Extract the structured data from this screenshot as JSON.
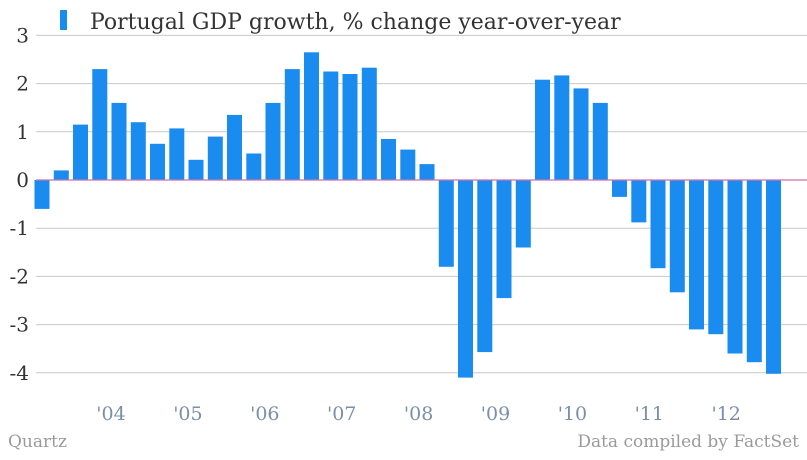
{
  "chart_data": {
    "type": "bar",
    "series": [
      {
        "name": "Portugal GDP growth, % change year-over-year",
        "values": [
          -0.6,
          0.2,
          1.15,
          2.3,
          1.6,
          1.2,
          0.75,
          1.07,
          0.42,
          0.9,
          1.35,
          0.55,
          1.6,
          2.3,
          2.65,
          2.25,
          2.2,
          2.33,
          0.85,
          0.63,
          0.33,
          -1.8,
          -4.1,
          -3.57,
          -2.45,
          -1.4,
          2.08,
          2.17,
          1.9,
          1.6,
          -0.35,
          -0.88,
          -1.83,
          -2.33,
          -3.1,
          -3.2,
          -3.6,
          -3.78,
          -4.02
        ]
      }
    ],
    "x_tick_labels": [
      "'04",
      "'05",
      "'06",
      "'07",
      "'08",
      "'09",
      "'10",
      "'11",
      "'12"
    ],
    "y_ticks": [
      3,
      2,
      1,
      0,
      -1,
      -2,
      -3,
      -4
    ],
    "ylim": [
      -4.4,
      3
    ],
    "grid": true,
    "legend_position": "top-left",
    "colors": {
      "bar": "#1a8cf0",
      "zero_line": "#d070b0",
      "grid": "#c8c8c8"
    }
  },
  "footer": {
    "source_left": "Quartz",
    "source_right": "Data compiled by FactSet"
  }
}
